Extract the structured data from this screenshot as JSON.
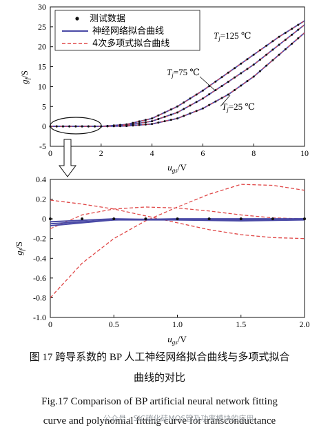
{
  "chart_data": [
    {
      "type": "line",
      "xlabel": "u_gs/V",
      "ylabel": "g_f/S",
      "xlim": [
        0,
        10
      ],
      "ylim": [
        -5,
        30
      ],
      "xticks": [
        0,
        2,
        4,
        6,
        8,
        10
      ],
      "yticks": [
        -5,
        0,
        5,
        10,
        15,
        20,
        25,
        30
      ],
      "legend": {
        "placement": "top-left",
        "entries": [
          "测试数据",
          "神经网络拟合曲线",
          "4次多项式拟合曲线"
        ]
      },
      "annotations": [
        "T_j=125 ℃",
        "T_j=75 ℃",
        "T_j=25 ℃"
      ],
      "series": [
        {
          "name": "T_j=125 ℃",
          "x": [
            0,
            1,
            2,
            3,
            4,
            5,
            6,
            7,
            8,
            9,
            10
          ],
          "y": [
            0,
            0,
            0,
            0.5,
            2,
            5,
            9,
            13.5,
            18,
            22.5,
            26.5
          ]
        },
        {
          "name": "T_j=75 ℃",
          "x": [
            0,
            1,
            2,
            3,
            4,
            5,
            6,
            7,
            8,
            9,
            10
          ],
          "y": [
            0,
            0,
            0,
            0.3,
            1.3,
            3.5,
            7,
            11.2,
            15.5,
            20.5,
            25.5
          ]
        },
        {
          "name": "T_j=25 ℃",
          "x": [
            0,
            1,
            2,
            3,
            4,
            5,
            6,
            7,
            8,
            9,
            10
          ],
          "y": [
            0,
            0,
            0,
            0.1,
            0.6,
            2,
            4.5,
            8,
            12.5,
            18,
            23.5
          ]
        }
      ],
      "highlight_region": {
        "x": [
          0,
          2
        ],
        "y": [
          -0.5,
          0.5
        ]
      }
    },
    {
      "type": "line",
      "xlabel": "u_gs/V",
      "ylabel": "g_f/S",
      "xlim": [
        0,
        2
      ],
      "ylim": [
        -1.0,
        0.4
      ],
      "xticks": [
        0,
        0.5,
        1.0,
        1.5,
        2.0
      ],
      "yticks": [
        -1.0,
        -0.8,
        -0.6,
        -0.4,
        -0.2,
        0,
        0.2,
        0.4
      ],
      "measured_points": {
        "x": [
          0,
          0.25,
          0.5,
          0.75,
          1.0,
          1.25,
          1.5,
          1.75,
          2.0
        ],
        "y": [
          0,
          0,
          0,
          0,
          0,
          0,
          0,
          0,
          0
        ]
      },
      "nn_fit": [
        {
          "x": [
            0,
            0.5,
            1.0,
            1.5,
            2.0
          ],
          "y": [
            -0.07,
            -0.01,
            0.0,
            0.0,
            0.0
          ]
        },
        {
          "x": [
            0,
            0.5,
            1.0,
            1.5,
            2.0
          ],
          "y": [
            -0.05,
            -0.01,
            -0.01,
            -0.01,
            0.0
          ]
        },
        {
          "x": [
            0,
            0.5,
            1.0,
            1.5,
            2.0
          ],
          "y": [
            -0.03,
            0.0,
            -0.01,
            -0.02,
            -0.01
          ]
        }
      ],
      "poly_fit": [
        {
          "x": [
            0,
            0.25,
            0.5,
            0.75,
            1.0,
            1.25,
            1.5,
            1.75,
            2.0
          ],
          "y": [
            -0.8,
            -0.45,
            -0.2,
            -0.02,
            0.12,
            0.25,
            0.35,
            0.34,
            0.29
          ]
        },
        {
          "x": [
            0,
            0.25,
            0.5,
            0.75,
            1.0,
            1.25,
            1.5,
            1.75,
            2.0
          ],
          "y": [
            -0.1,
            0.04,
            0.1,
            0.12,
            0.11,
            0.08,
            0.04,
            0.01,
            0.0
          ]
        },
        {
          "x": [
            0,
            0.25,
            0.5,
            0.75,
            1.0,
            1.25,
            1.5,
            1.75,
            2.0
          ],
          "y": [
            0.19,
            0.15,
            0.1,
            0.03,
            -0.04,
            -0.11,
            -0.16,
            -0.19,
            -0.2
          ]
        }
      ]
    }
  ],
  "caption": {
    "cn_line1": "图 17    跨导系数的 BP 人工神经网络拟合曲线与多项式拟合",
    "cn_line2": "曲线的对比",
    "en_line1": "Fig.17    Comparison of BP artificial neural network fitting",
    "en_line2": "curve and polynomial fitting curve for transconductance"
  },
  "watermark": "公众号 · SiC碳化硅MOS管及功率模块的应用",
  "colors": {
    "nn": "#4a4aa6",
    "poly": "#e04848",
    "axis": "#111111",
    "point": "#111111"
  }
}
